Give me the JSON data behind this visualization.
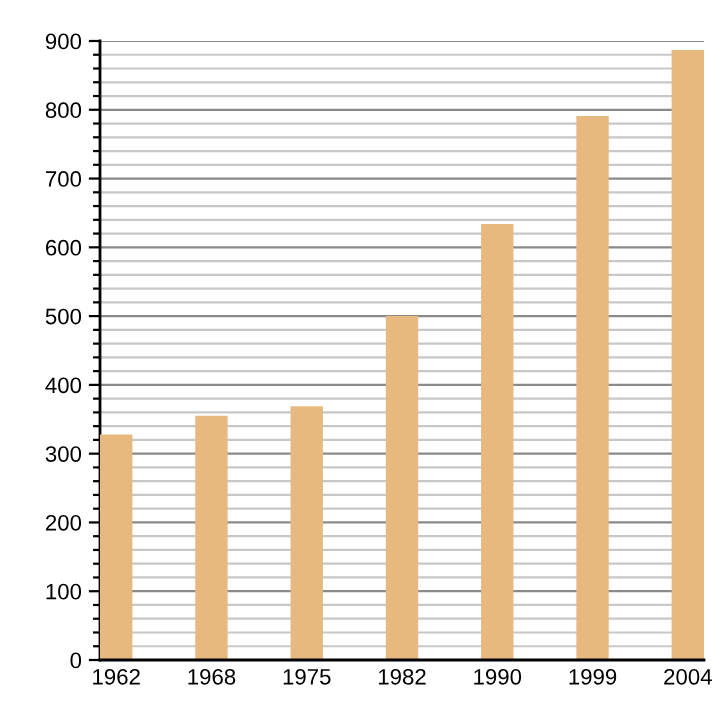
{
  "chart_data": {
    "type": "bar",
    "categories": [
      "1962",
      "1968",
      "1975",
      "1982",
      "1990",
      "1999",
      "2004"
    ],
    "values": [
      328,
      355,
      369,
      500,
      634,
      791,
      887
    ],
    "color": "#e8b97f",
    "ylim": [
      0,
      900
    ],
    "yticks": [
      0,
      {
        "value": 20,
        "label": null
      },
      {
        "value": 40,
        "label": null
      },
      {
        "value": 60,
        "label": null
      },
      {
        "value": 80,
        "label": null
      },
      100,
      {
        "value": 120,
        "label": null
      },
      {
        "value": 140,
        "label": null
      },
      {
        "value": 160,
        "label": null
      },
      {
        "value": 180,
        "label": null
      },
      200,
      {
        "value": 220,
        "label": null
      },
      {
        "value": 240,
        "label": null
      },
      {
        "value": 260,
        "label": null
      },
      {
        "value": 280,
        "label": null
      },
      300,
      {
        "value": 320,
        "label": null
      },
      {
        "value": 340,
        "label": null
      },
      {
        "value": 360,
        "label": null
      },
      {
        "value": 380,
        "label": null
      },
      400,
      {
        "value": 420,
        "label": null
      },
      {
        "value": 440,
        "label": null
      },
      {
        "value": 460,
        "label": null
      },
      {
        "value": 480,
        "label": null
      },
      500,
      {
        "value": 520,
        "label": null
      },
      {
        "value": 540,
        "label": null
      },
      {
        "value": 560,
        "label": null
      },
      {
        "value": 580,
        "label": null
      },
      600,
      {
        "value": 620,
        "label": null
      },
      {
        "value": 640,
        "label": null
      },
      {
        "value": 660,
        "label": null
      },
      {
        "value": 680,
        "label": null
      },
      700,
      {
        "value": 720,
        "label": null
      },
      {
        "value": 740,
        "label": null
      },
      {
        "value": 760,
        "label": null
      },
      {
        "value": 780,
        "label": null
      },
      800,
      {
        "value": 820,
        "label": null
      },
      {
        "value": 840,
        "label": null
      },
      {
        "value": 860,
        "label": null
      },
      {
        "value": 880,
        "label": null
      },
      900
    ],
    "grid": "y"
  }
}
